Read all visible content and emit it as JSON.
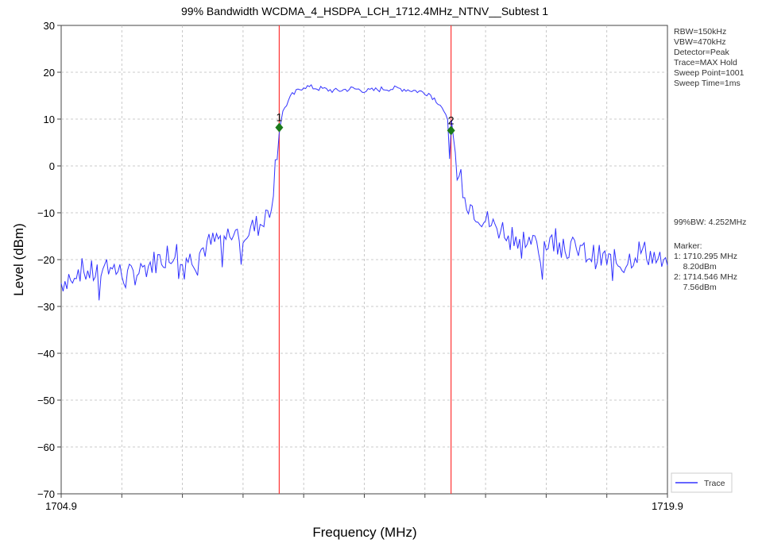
{
  "chart_data": {
    "type": "line",
    "title": "99% Bandwidth WCDMA_4_HSDPA_LCH_1712.4MHz_NTNV__Subtest 1",
    "xlabel": "Frequency (MHz)",
    "ylabel": "Level (dBm)",
    "xlim": [
      1704.9,
      1719.9
    ],
    "ylim": [
      -70,
      30
    ],
    "x_tick_labels": [
      "1704.9",
      "1719.9"
    ],
    "y_ticks": [
      "30",
      "20",
      "10",
      "0",
      "−10",
      "−20",
      "−30",
      "−40",
      "−50",
      "−60",
      "−70"
    ],
    "grid": true,
    "colors": {
      "trace": "#3333ff",
      "marker_line": "#ff3333",
      "marker_point": "#1a7a1a"
    },
    "series": [
      {
        "name": "Trace",
        "x": [
          1704.9,
          1705.3,
          1705.7,
          1706.1,
          1706.5,
          1706.9,
          1707.3,
          1707.7,
          1708.1,
          1708.5,
          1709.0,
          1709.5,
          1709.9,
          1710.1,
          1710.295,
          1710.4,
          1710.6,
          1710.9,
          1711.3,
          1711.7,
          1712.1,
          1712.5,
          1712.9,
          1713.3,
          1713.7,
          1714.0,
          1714.3,
          1714.546,
          1714.7,
          1714.9,
          1715.2,
          1715.6,
          1716.0,
          1716.4,
          1716.8,
          1717.2,
          1717.6,
          1718.0,
          1718.4,
          1718.8,
          1719.2,
          1719.5,
          1719.9
        ],
        "y": [
          -25,
          -22,
          -23,
          -21,
          -24,
          -22,
          -20,
          -18,
          -20,
          -17,
          -15,
          -14,
          -12,
          -8,
          8.2,
          12,
          15,
          17,
          16.5,
          16,
          16.5,
          16,
          16.5,
          16.5,
          16,
          15.5,
          13,
          7.56,
          0,
          -7,
          -10,
          -13,
          -14,
          -16,
          -17,
          -15,
          -18,
          -19,
          -20,
          -21,
          -18,
          -19,
          -22
        ]
      }
    ],
    "markers": [
      {
        "label": "1",
        "x": 1710.295,
        "y": 8.2
      },
      {
        "label": "2",
        "x": 1714.546,
        "y": 7.56
      }
    ],
    "legend": {
      "position": "bottom-right",
      "entry": "Trace"
    }
  },
  "info_panel": {
    "settings": [
      "RBW=150kHz",
      "VBW=470kHz",
      "Detector=Peak",
      "Trace=MAX Hold",
      "Sweep Point=1001",
      "Sweep Time=1ms"
    ],
    "bandwidth": "99%BW: 4.252MHz",
    "marker_lines": [
      "Marker:",
      "1: 1710.295 MHz",
      "    8.20dBm",
      "2: 1714.546 MHz",
      "    7.56dBm"
    ]
  }
}
